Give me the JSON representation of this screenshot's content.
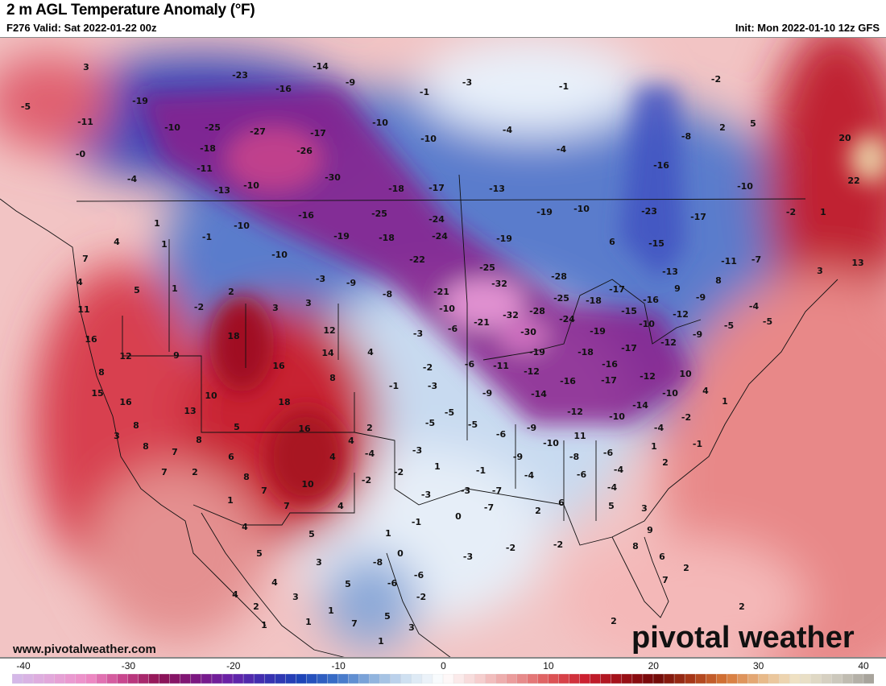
{
  "header": {
    "title": "2 m AGL Temperature Anomaly (°F)",
    "valid": "F276 Valid: Sat 2022-01-22 00z",
    "init": "Init: Mon 2022-01-10 12z GFS"
  },
  "footer": {
    "website": "www.pivotalweather.com",
    "brand": "pivotal weather"
  },
  "colorbar": {
    "min": -40,
    "max": 40,
    "tick_labels": [
      "-40",
      "-30",
      "-20",
      "-10",
      "0",
      "10",
      "20",
      "30",
      "40"
    ],
    "colors": [
      "#d5b8e8",
      "#e4a6d9",
      "#f08cc6",
      "#c8448c",
      "#8e1252",
      "#7d1880",
      "#6a22a8",
      "#3a30b0",
      "#1e44b8",
      "#3a70c8",
      "#8cb0dc",
      "#d2e2f2",
      "#ffffff",
      "#f6d0d0",
      "#ea9898",
      "#de5858",
      "#cc2030",
      "#a01018",
      "#700808",
      "#a83818",
      "#d87838",
      "#e8b888",
      "#f0e4c8",
      "#d0ccc0",
      "#a8a49c"
    ]
  },
  "map": {
    "anomaly_labels": [
      "3",
      "-5",
      "-11",
      "-19",
      "-10",
      "-25",
      "-27",
      "-17",
      "-18",
      "-26",
      "-0",
      "-4",
      "-11",
      "-30",
      "-10",
      "-13",
      "-23",
      "-14",
      "-16",
      "-9",
      "-3",
      "-1",
      "-1",
      "-2",
      "5",
      "2",
      "-4",
      "-10",
      "-10",
      "-4",
      "-8",
      "-16",
      "-10",
      "20",
      "22",
      "-18",
      "-17",
      "-13",
      "-19",
      "-10",
      "-23",
      "-17",
      "-2",
      "1",
      "-16",
      "-10",
      "-25",
      "-24",
      "1",
      "4",
      "1",
      "-1",
      "-19",
      "-18",
      "-24",
      "-19",
      "6",
      "-15",
      "-11",
      "-7",
      "3",
      "13",
      "7",
      "-10",
      "-22",
      "-25",
      "-13",
      "9",
      "8",
      "4",
      "5",
      "1",
      "2",
      "-3",
      "-9",
      "-8",
      "-21",
      "-32",
      "-28",
      "-17",
      "-16",
      "-9",
      "-4",
      "11",
      "-2",
      "3",
      "3",
      "-10",
      "-32",
      "-28",
      "-25",
      "-18",
      "-15",
      "-12",
      "-5",
      "-5",
      "16",
      "18",
      "12",
      "-3",
      "-6",
      "-21",
      "-30",
      "-24",
      "-10",
      "-19",
      "-9",
      "12",
      "9",
      "14",
      "4",
      "-12",
      "-17",
      "-18",
      "-19",
      "-6",
      "-11",
      "-2",
      "8",
      "16",
      "8",
      "-12",
      "-16",
      "-17",
      "-16",
      "-12",
      "10",
      "4",
      "15",
      "10",
      "18",
      "-1",
      "-3",
      "-9",
      "-14",
      "-10",
      "1",
      "16",
      "-14",
      "13",
      "2",
      "-5",
      "-5",
      "-5",
      "-12",
      "-10",
      "-2",
      "8",
      "5",
      "16",
      "3",
      "8",
      "4",
      "-6",
      "-9",
      "-10",
      "11",
      "-4",
      "1",
      "-1",
      "8",
      "7",
      "6",
      "4",
      "-4",
      "-3",
      "-6",
      "-8",
      "-9",
      "-4",
      "-4",
      "-1",
      "2",
      "7",
      "2",
      "8",
      "-2",
      "-2",
      "1",
      "-6",
      "7",
      "10",
      "-7",
      "-3",
      "-4",
      "-3",
      "1",
      "7",
      "4",
      "-7",
      "0",
      "-1",
      "5",
      "2",
      "6",
      "3",
      "4",
      "5",
      "1",
      "9",
      "5",
      "-3",
      "-2",
      "-2",
      "0",
      "8",
      "6",
      "3",
      "-8",
      "2",
      "-6",
      "7",
      "4",
      "5",
      "-6",
      "4",
      "2",
      "3",
      "-2",
      "2",
      "1",
      "1",
      "1",
      "7",
      "5",
      "3",
      "2",
      "1"
    ]
  }
}
